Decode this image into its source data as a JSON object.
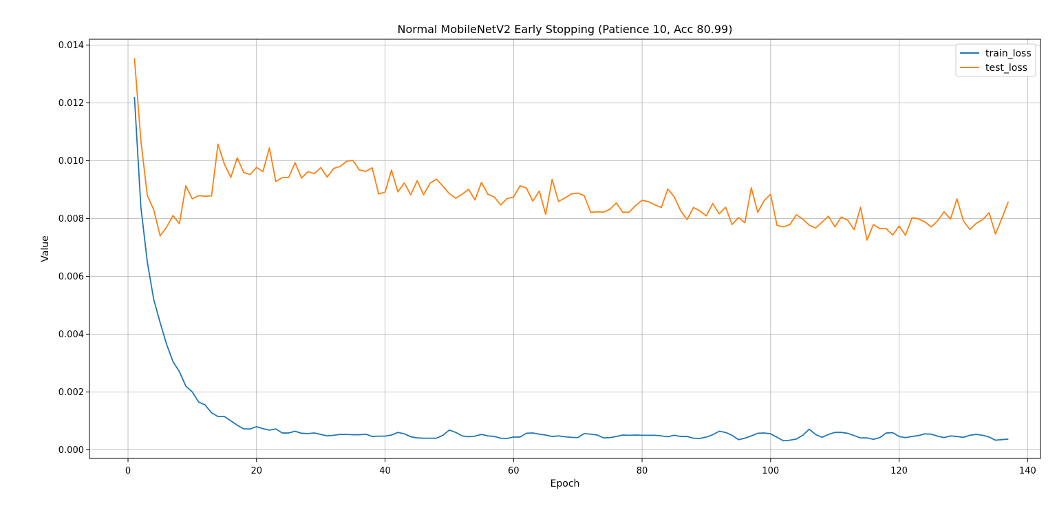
{
  "chart_data": {
    "type": "line",
    "title": "Normal MobileNetV2 Early Stopping (Patience 10, Acc 80.99)",
    "xlabel": "Epoch",
    "ylabel": "Value",
    "xlim": [
      -6,
      142
    ],
    "ylim": [
      -0.0003,
      0.0142
    ],
    "xticks": [
      0,
      20,
      40,
      60,
      80,
      100,
      120,
      140
    ],
    "yticks": [
      0.0,
      0.002,
      0.004,
      0.006,
      0.008,
      0.01,
      0.012,
      0.014
    ],
    "ytick_labels": [
      "0.000",
      "0.002",
      "0.004",
      "0.006",
      "0.008",
      "0.010",
      "0.012",
      "0.014"
    ],
    "grid": true,
    "legend_position": "top-right",
    "x": [
      1,
      2,
      3,
      4,
      5,
      6,
      7,
      8,
      9,
      10,
      11,
      12,
      13,
      14,
      15,
      16,
      17,
      18,
      19,
      20,
      21,
      22,
      23,
      24,
      25,
      26,
      27,
      28,
      29,
      30,
      31,
      32,
      33,
      34,
      35,
      36,
      37,
      38,
      39,
      40,
      41,
      42,
      43,
      44,
      45,
      46,
      47,
      48,
      49,
      50,
      51,
      52,
      53,
      54,
      55,
      56,
      57,
      58,
      59,
      60,
      61,
      62,
      63,
      64,
      65,
      66,
      67,
      68,
      69,
      70,
      71,
      72,
      73,
      74,
      75,
      76,
      77,
      78,
      79,
      80,
      81,
      82,
      83,
      84,
      85,
      86,
      87,
      88,
      89,
      90,
      91,
      92,
      93,
      94,
      95,
      96,
      97,
      98,
      99,
      100,
      101,
      102,
      103,
      104,
      105,
      106,
      107,
      108,
      109,
      110,
      111,
      112,
      113,
      114,
      115,
      116,
      117,
      118,
      119,
      120,
      121,
      122,
      123,
      124,
      125,
      126,
      127,
      128,
      129,
      130,
      131,
      132,
      133,
      134,
      135,
      136,
      137
    ],
    "series": [
      {
        "name": "train_loss",
        "color": "#1f77b4",
        "values": [
          0.0122,
          0.0084,
          0.0065,
          0.0052,
          0.0044,
          0.00365,
          0.00305,
          0.0027,
          0.0022,
          0.002,
          0.00165,
          0.00155,
          0.00128,
          0.00115,
          0.00115,
          0.001,
          0.00085,
          0.00072,
          0.00072,
          0.0008,
          0.00073,
          0.00068,
          0.00072,
          0.00058,
          0.00058,
          0.00064,
          0.00057,
          0.00056,
          0.00058,
          0.00053,
          0.00048,
          0.0005,
          0.00053,
          0.00053,
          0.00052,
          0.00052,
          0.00054,
          0.00046,
          0.00047,
          0.00047,
          0.00051,
          0.0006,
          0.00055,
          0.00045,
          0.00041,
          0.0004,
          0.0004,
          0.0004,
          0.0005,
          0.00068,
          0.0006,
          0.00048,
          0.00045,
          0.00047,
          0.00053,
          0.00048,
          0.00046,
          0.0004,
          0.00039,
          0.00044,
          0.00044,
          0.00057,
          0.00058,
          0.00054,
          0.00051,
          0.00046,
          0.00048,
          0.00045,
          0.00043,
          0.00042,
          0.00056,
          0.00054,
          0.00051,
          0.00041,
          0.00042,
          0.00046,
          0.00051,
          0.0005,
          0.00051,
          0.0005,
          0.0005,
          0.0005,
          0.00048,
          0.00045,
          0.0005,
          0.00046,
          0.00046,
          0.0004,
          0.00039,
          0.00044,
          0.00052,
          0.00064,
          0.0006,
          0.0005,
          0.00035,
          0.0004,
          0.00048,
          0.00057,
          0.00058,
          0.00055,
          0.00043,
          0.00031,
          0.00033,
          0.00037,
          0.0005,
          0.00071,
          0.00053,
          0.00043,
          0.00053,
          0.0006,
          0.0006,
          0.00057,
          0.00049,
          0.00041,
          0.00041,
          0.00036,
          0.00042,
          0.00058,
          0.00059,
          0.00046,
          0.00042,
          0.00046,
          0.00049,
          0.00055,
          0.00054,
          0.00047,
          0.00042,
          0.00048,
          0.00046,
          0.00043,
          0.0005,
          0.00053,
          0.0005,
          0.00044,
          0.00033,
          0.00035,
          0.00037
        ]
      },
      {
        "name": "test_loss",
        "color": "#ff7f0e",
        "values": [
          0.01355,
          0.0107,
          0.0088,
          0.0083,
          0.0074,
          0.0077,
          0.0081,
          0.00782,
          0.00913,
          0.00868,
          0.00879,
          0.00877,
          0.00878,
          0.01057,
          0.00988,
          0.00942,
          0.0101,
          0.00959,
          0.00952,
          0.00977,
          0.00962,
          0.01044,
          0.00928,
          0.00941,
          0.00942,
          0.00993,
          0.0094,
          0.00962,
          0.00955,
          0.00976,
          0.00943,
          0.00973,
          0.0098,
          0.00998,
          0.01001,
          0.00968,
          0.00963,
          0.00975,
          0.00885,
          0.00891,
          0.00967,
          0.00892,
          0.00923,
          0.00882,
          0.00931,
          0.00882,
          0.00922,
          0.00936,
          0.00912,
          0.00886,
          0.0087,
          0.00884,
          0.00901,
          0.00864,
          0.00925,
          0.00884,
          0.00874,
          0.00847,
          0.00869,
          0.00874,
          0.00913,
          0.00905,
          0.0086,
          0.00895,
          0.00814,
          0.00935,
          0.00859,
          0.00871,
          0.00885,
          0.00888,
          0.00879,
          0.00821,
          0.00823,
          0.00822,
          0.00832,
          0.00854,
          0.00821,
          0.00822,
          0.00845,
          0.00863,
          0.00858,
          0.00847,
          0.00838,
          0.00902,
          0.00875,
          0.00827,
          0.00796,
          0.00838,
          0.00826,
          0.00809,
          0.00852,
          0.00816,
          0.00839,
          0.00779,
          0.00803,
          0.00785,
          0.00906,
          0.00821,
          0.00862,
          0.00884,
          0.00776,
          0.00771,
          0.00779,
          0.00813,
          0.00798,
          0.00777,
          0.00767,
          0.00787,
          0.00808,
          0.00771,
          0.00805,
          0.00794,
          0.00761,
          0.00839,
          0.00725,
          0.00779,
          0.00765,
          0.00765,
          0.00743,
          0.00774,
          0.00742,
          0.00802,
          0.00799,
          0.00788,
          0.00771,
          0.00792,
          0.00823,
          0.00798,
          0.00868,
          0.00792,
          0.00762,
          0.00783,
          0.00796,
          0.0082,
          0.00746,
          0.00801,
          0.00858
        ]
      }
    ]
  }
}
